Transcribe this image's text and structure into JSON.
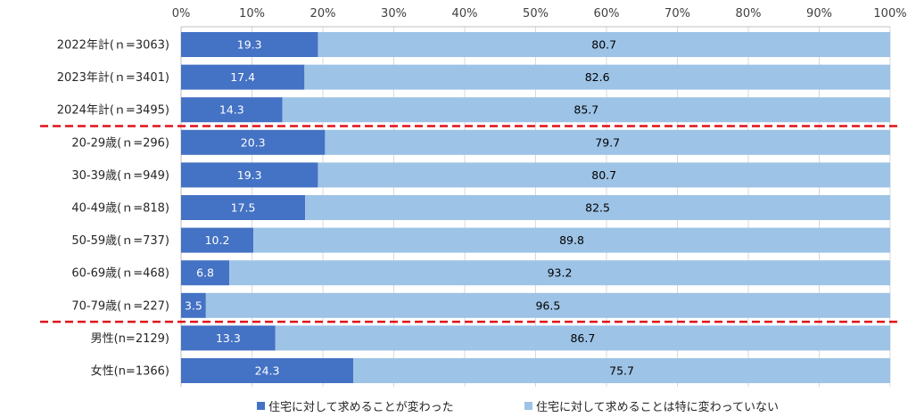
{
  "chart_data": {
    "type": "bar",
    "orientation": "horizontal",
    "stacked": true,
    "percent": true,
    "categories": [
      "2022年計(ｎ=3063)",
      "2023年計(ｎ=3401)",
      "2024年計(ｎ=3495)",
      "20-29歳(ｎ=296)",
      "30-39歳(ｎ=949)",
      "40-49歳(ｎ=818)",
      "50-59歳(ｎ=737)",
      "60-69歳(ｎ=468)",
      "70-79歳(ｎ=227)",
      "男性(n=2129)",
      "女性(n=1366)"
    ],
    "series": [
      {
        "name": "住宅に対して求めることが変わった",
        "color": "#4472c4",
        "label_color": "#ffffff",
        "values": [
          19.3,
          17.4,
          14.3,
          20.3,
          19.3,
          17.5,
          10.2,
          6.8,
          3.5,
          13.3,
          24.3
        ]
      },
      {
        "name": "住宅に対して求めることは特に変わっていない",
        "color": "#9dc3e6",
        "label_color": "#000000",
        "values": [
          80.7,
          82.6,
          85.7,
          79.7,
          80.7,
          82.5,
          89.8,
          93.2,
          96.5,
          86.7,
          75.7
        ]
      }
    ],
    "xticks": [
      "0%",
      "10%",
      "20%",
      "30%",
      "40%",
      "50%",
      "60%",
      "70%",
      "80%",
      "90%",
      "100%"
    ],
    "xlim": [
      0,
      100
    ],
    "axis_position": "top",
    "grid": true,
    "legend_position": "bottom",
    "separators": {
      "after_category_index": [
        2,
        8
      ],
      "color": "#e0101a",
      "style": "dashed"
    }
  }
}
